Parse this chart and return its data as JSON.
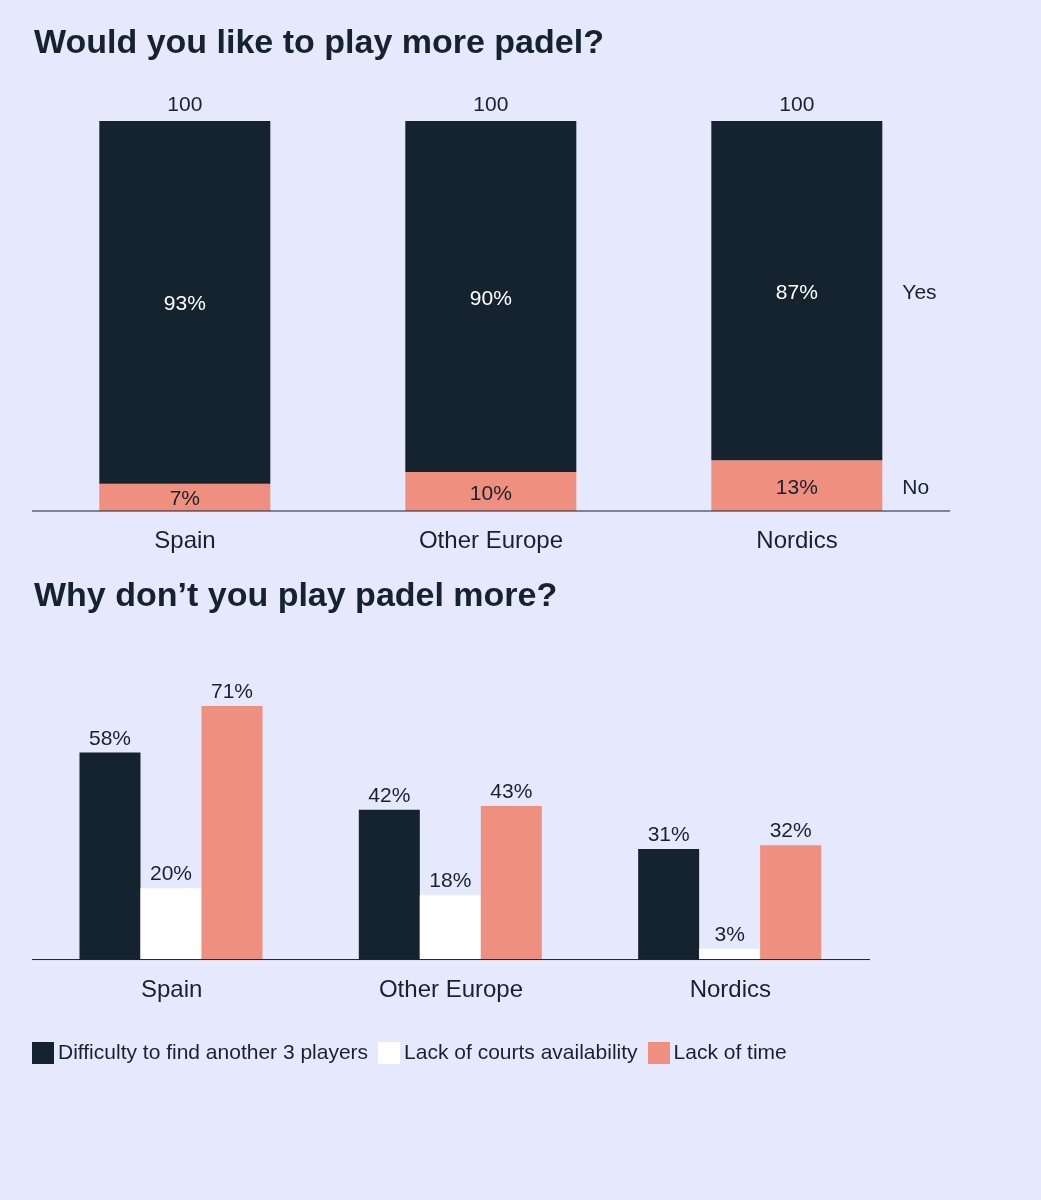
{
  "chart_data": [
    {
      "type": "bar",
      "title": "Would you like to play more padel?",
      "categories": [
        "Spain",
        "Other Europe",
        "Nordics"
      ],
      "stacked": true,
      "totals": [
        "100",
        "100",
        "100"
      ],
      "series": [
        {
          "name": "No",
          "color": "#ef8f7f",
          "values": [
            7,
            10,
            13
          ],
          "value_labels": [
            "7%",
            "10%",
            "13%"
          ]
        },
        {
          "name": "Yes",
          "color": "#15232f",
          "values": [
            93,
            90,
            87
          ],
          "value_labels": [
            "93%",
            "90%",
            "87%"
          ]
        }
      ]
    },
    {
      "type": "bar",
      "title": "Why don’t you play padel more?",
      "categories": [
        "Spain",
        "Other Europe",
        "Nordics"
      ],
      "legend": "bottom",
      "series": [
        {
          "name": "Difficulty to find another 3 players",
          "color": "#15232f",
          "values": [
            58,
            42,
            31
          ],
          "value_labels": [
            "58%",
            "42%",
            "31%"
          ]
        },
        {
          "name": "Lack of courts availability",
          "color": "#ffffff",
          "values": [
            20,
            18,
            3
          ],
          "value_labels": [
            "20%",
            "18%",
            "3%"
          ]
        },
        {
          "name": "Lack of time",
          "color": "#ef8f7f",
          "values": [
            71,
            43,
            32
          ],
          "value_labels": [
            "71%",
            "43%",
            "32%"
          ]
        }
      ]
    }
  ]
}
